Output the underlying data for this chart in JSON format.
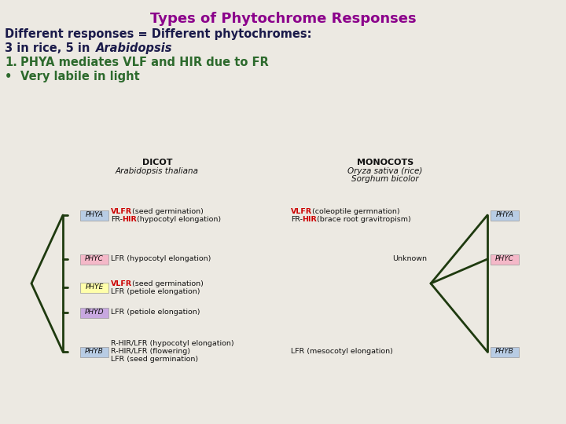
{
  "title": "Types of Phytochrome Responses",
  "title_color": "#8B008B",
  "bg_color": "#ece9e2",
  "line1": "Different responses = Different phytochromes:",
  "line2_prefix": "3 in rice, 5 in ",
  "line2_italic": "Arabidopsis",
  "line3_num": "1.",
  "line3_text": "PHYA mediates VLF and HIR due to FR",
  "line4_bullet": "•",
  "line4_text": "Very labile in light",
  "text_color_dark": "#1a1a4a",
  "text_color_green": "#2d6a2d",
  "dicot_header": "DICOT",
  "dicot_subheader": "Arabidopsis thaliana",
  "monocot_header": "MONOCOTS",
  "monocot_subheader1": "Oryza sativa (rice)",
  "monocot_subheader2": "Sorghum bicolor",
  "dark_green": "#1e3a0f",
  "phya_color": "#b8cce4",
  "phyc_color": "#f4b8c8",
  "phye_color": "#ffffaa",
  "phyd_color": "#c8a8e0",
  "phyb_color": "#b8cce4",
  "red_color": "#cc0000",
  "dark_text": "#111111"
}
